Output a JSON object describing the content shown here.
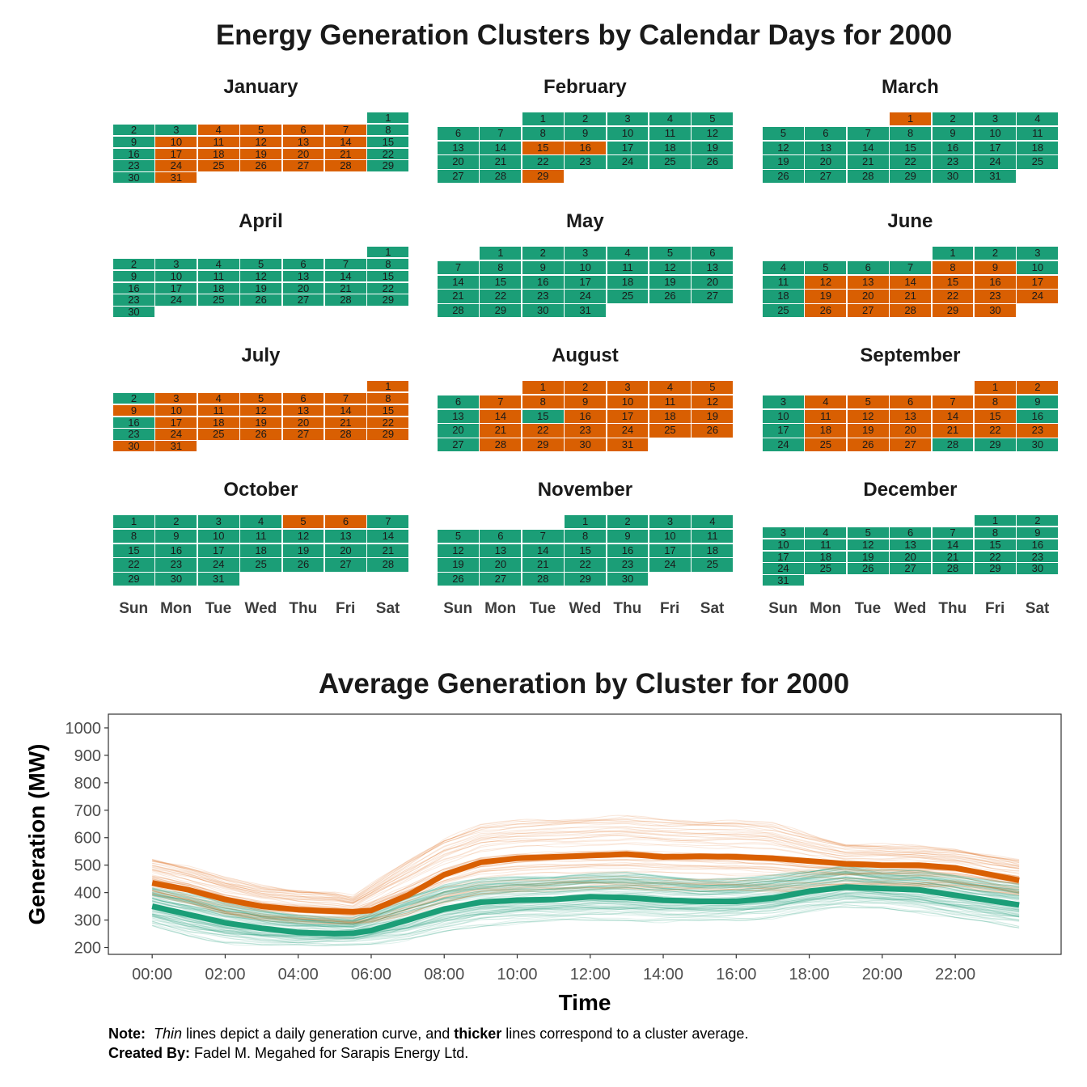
{
  "calendar": {
    "title": "Energy Generation Clusters by Calendar Days for 2000",
    "year": 2000,
    "weekday_labels": [
      "Sun",
      "Mon",
      "Tue",
      "Wed",
      "Thu",
      "Fri",
      "Sat"
    ],
    "cluster_colors": {
      "1": "#1b9e77",
      "2": "#d95f02"
    },
    "months": [
      {
        "name": "January",
        "cluster2_days": [
          4,
          5,
          6,
          7,
          10,
          11,
          12,
          13,
          14,
          17,
          18,
          19,
          20,
          21,
          24,
          25,
          26,
          27,
          28,
          31
        ]
      },
      {
        "name": "February",
        "cluster2_days": [
          15,
          16,
          29
        ]
      },
      {
        "name": "March",
        "cluster2_days": [
          1
        ]
      },
      {
        "name": "April",
        "cluster2_days": []
      },
      {
        "name": "May",
        "cluster2_days": []
      },
      {
        "name": "June",
        "cluster2_days": [
          8,
          9,
          12,
          13,
          14,
          15,
          16,
          17,
          19,
          20,
          21,
          22,
          23,
          24,
          26,
          27,
          28,
          29,
          30
        ]
      },
      {
        "name": "July",
        "cluster2_days": [
          1,
          3,
          4,
          5,
          6,
          7,
          8,
          9,
          10,
          11,
          12,
          13,
          14,
          15,
          17,
          18,
          19,
          20,
          21,
          22,
          24,
          25,
          26,
          27,
          28,
          29,
          30,
          31
        ]
      },
      {
        "name": "August",
        "cluster2_days": [
          1,
          2,
          3,
          4,
          5,
          7,
          8,
          9,
          10,
          11,
          12,
          14,
          16,
          17,
          18,
          19,
          21,
          22,
          23,
          24,
          25,
          26,
          28,
          29,
          30,
          31
        ]
      },
      {
        "name": "September",
        "cluster2_days": [
          1,
          2,
          4,
          5,
          6,
          7,
          8,
          11,
          12,
          13,
          14,
          15,
          18,
          19,
          20,
          21,
          22,
          23,
          25,
          26,
          27
        ]
      },
      {
        "name": "October",
        "cluster2_days": [
          5,
          6
        ]
      },
      {
        "name": "November",
        "cluster2_days": []
      },
      {
        "name": "December",
        "cluster2_days": []
      }
    ]
  },
  "chart_data": {
    "type": "line",
    "title": "Average Generation by Cluster for 2000",
    "xlabel": "Time",
    "ylabel": "Generation (MW)",
    "x_ticks": [
      "00:00",
      "02:00",
      "04:00",
      "06:00",
      "08:00",
      "10:00",
      "12:00",
      "14:00",
      "16:00",
      "18:00",
      "20:00",
      "22:00"
    ],
    "y_ticks": [
      200,
      300,
      400,
      500,
      600,
      700,
      800,
      900,
      1000
    ],
    "ylim": [
      175,
      1050
    ],
    "x": [
      0,
      1,
      2,
      3,
      4,
      5,
      5.5,
      6,
      7,
      8,
      9,
      10,
      11,
      12,
      13,
      14,
      15,
      16,
      17,
      18,
      19,
      20,
      21,
      22,
      23.75
    ],
    "series": [
      {
        "color": "#1b9e77",
        "values": [
          350,
          320,
          290,
          270,
          255,
          250,
          252,
          262,
          300,
          340,
          365,
          372,
          375,
          385,
          382,
          372,
          368,
          368,
          380,
          405,
          420,
          415,
          410,
          390,
          355
        ]
      },
      {
        "color": "#d95f02",
        "values": [
          435,
          410,
          375,
          350,
          338,
          332,
          330,
          335,
          390,
          465,
          510,
          525,
          530,
          535,
          540,
          530,
          532,
          530,
          525,
          515,
          505,
          500,
          500,
          490,
          445
        ]
      }
    ],
    "daily_band": {
      "1": {
        "low": [
          275,
          240,
          220,
          208,
          205,
          210,
          212,
          215,
          225,
          255,
          280,
          290,
          295,
          300,
          300,
          295,
          295,
          300,
          310,
          330,
          345,
          345,
          330,
          305,
          275
        ],
        "high": [
          420,
          395,
          360,
          335,
          320,
          310,
          305,
          330,
          385,
          430,
          450,
          455,
          460,
          470,
          470,
          460,
          450,
          450,
          460,
          480,
          500,
          480,
          480,
          465,
          430
        ]
      },
      "2": {
        "low": [
          390,
          360,
          320,
          300,
          290,
          285,
          285,
          290,
          315,
          360,
          390,
          400,
          405,
          410,
          410,
          405,
          405,
          405,
          400,
          400,
          410,
          420,
          420,
          420,
          390
        ],
        "high": [
          525,
          495,
          455,
          425,
          410,
          400,
          385,
          430,
          520,
          600,
          650,
          665,
          670,
          675,
          680,
          670,
          665,
          665,
          655,
          615,
          580,
          575,
          570,
          560,
          520
        ]
      }
    },
    "grid": false
  },
  "footnote": {
    "note_label": "Note:",
    "note_thin": "Thin",
    "note_mid": " lines depict a daily generation curve, and ",
    "note_thicker": "thicker",
    "note_end": " lines correspond to a cluster average.",
    "created_label": "Created By:",
    "created_text": " Fadel M. Megahed for Sarapis Energy Ltd."
  }
}
